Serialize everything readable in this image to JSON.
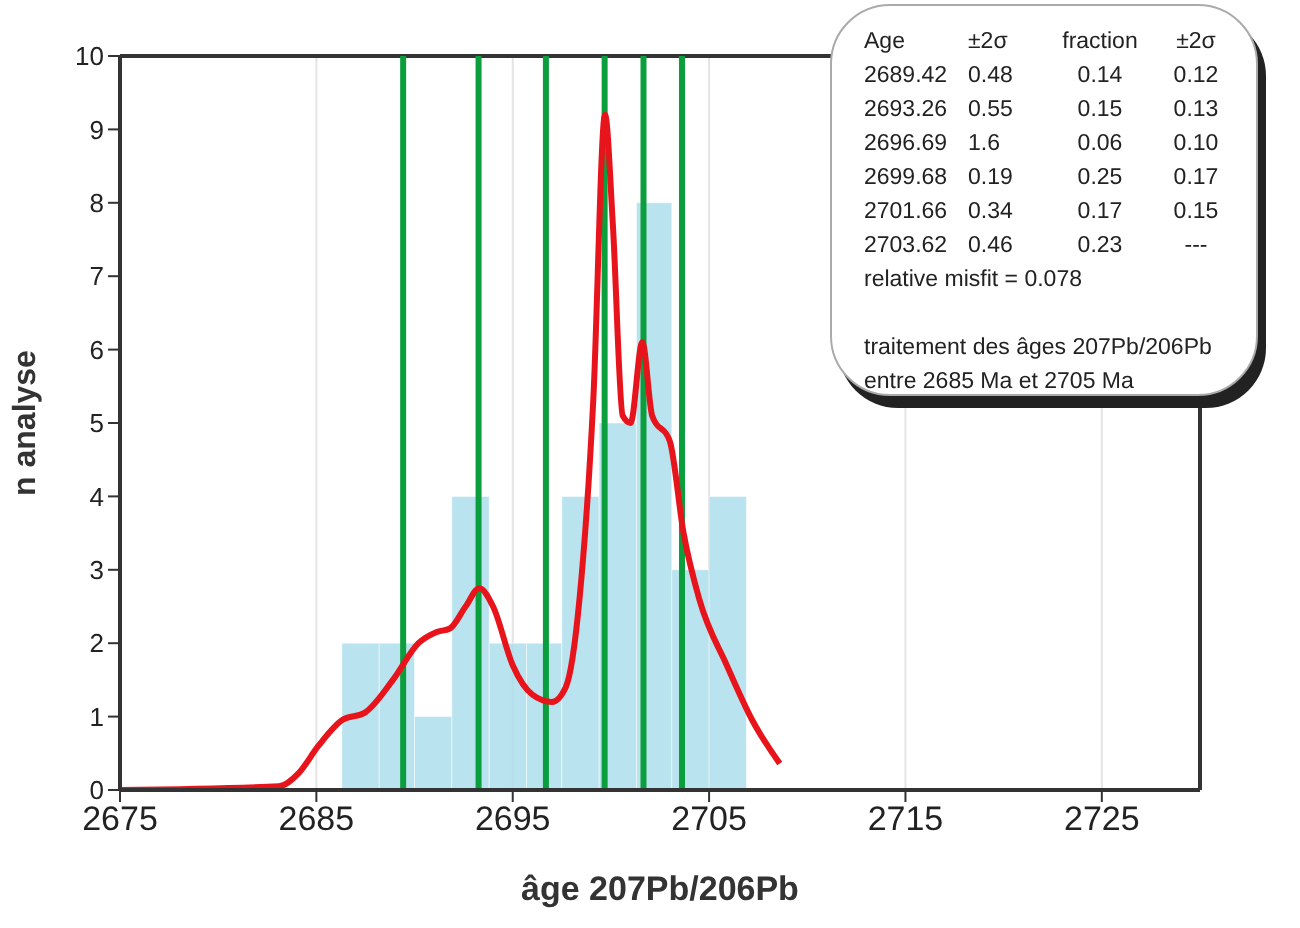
{
  "chart_data": {
    "type": "histogram",
    "xlabel": "âge 207Pb/206Pb",
    "ylabel": "n analyse",
    "bins": [
      2686.3,
      2688.2,
      2690.0,
      2691.9,
      2693.8,
      2695.7,
      2697.5,
      2699.4,
      2701.3,
      2703.1,
      2705.0,
      2706.9
    ],
    "values": [
      2,
      2,
      1,
      4,
      2,
      2,
      4,
      5,
      8,
      3,
      4
    ],
    "color": "#a8dcea",
    "series": [
      {
        "type": "line",
        "color": "#e8141c",
        "x": [
          2675,
          2683.1,
          2684.1,
          2685.1,
          2686.3,
          2687.5,
          2688.9,
          2690.2,
          2691.1,
          2691.8,
          2692.6,
          2693.3,
          2694.0,
          2695.0,
          2696.0,
          2697.0,
          2697.7,
          2698.4,
          2699.1,
          2699.7,
          2700.1,
          2700.6,
          2701.0,
          2701.6,
          2702.1,
          2703.0,
          2703.7,
          2704.5,
          2705.9,
          2707.2,
          2708.6
        ],
        "values": [
          0,
          0.05,
          0.23,
          0.6,
          0.95,
          1.06,
          1.5,
          2.0,
          2.15,
          2.2,
          2.5,
          2.75,
          2.5,
          1.7,
          1.3,
          1.2,
          1.4,
          2.6,
          5.3,
          9.2,
          7.7,
          5.1,
          5.0,
          6.1,
          5.1,
          4.75,
          3.5,
          2.6,
          1.7,
          0.95,
          0.36
        ]
      }
    ],
    "ref_lines": [
      {
        "axis": "x",
        "value": 2689.42,
        "color": "#0a9e3c"
      },
      {
        "axis": "x",
        "value": 2693.26,
        "color": "#0a9e3c"
      },
      {
        "axis": "x",
        "value": 2696.69,
        "color": "#0a9e3c"
      },
      {
        "axis": "x",
        "value": 2699.68,
        "color": "#0a9e3c"
      },
      {
        "axis": "x",
        "value": 2701.66,
        "color": "#0a9e3c"
      },
      {
        "axis": "x",
        "value": 2703.62,
        "color": "#0a9e3c"
      }
    ],
    "xlim": [
      2675,
      2730
    ],
    "xticks": [
      2675,
      2685,
      2695,
      2705,
      2715,
      2725
    ],
    "ylim": [
      0,
      10
    ],
    "yticks": [
      0,
      1,
      2,
      3,
      4,
      5,
      6,
      7,
      8,
      9,
      10
    ],
    "grid": "x",
    "legend": false,
    "marker": "none",
    "annotations": [
      "Age\t±2σ\tfraction\t±2σ",
      "2689.42\t0.48\t0.14\t0.12",
      "2693.26\t0.55\t0.15\t0.13",
      "2696.69\t1.6\t0.06\t0.10",
      "2699.68\t0.19\t0.25\t0.17",
      "2701.66\t0.34\t0.17\t0.15",
      "2703.62\t0.46\t0.23\t---",
      "relative misfit = 0.078",
      "traitement des âges 207Pb/206Pb",
      "entre 2685 Ma et 2705 Ma"
    ]
  }
}
